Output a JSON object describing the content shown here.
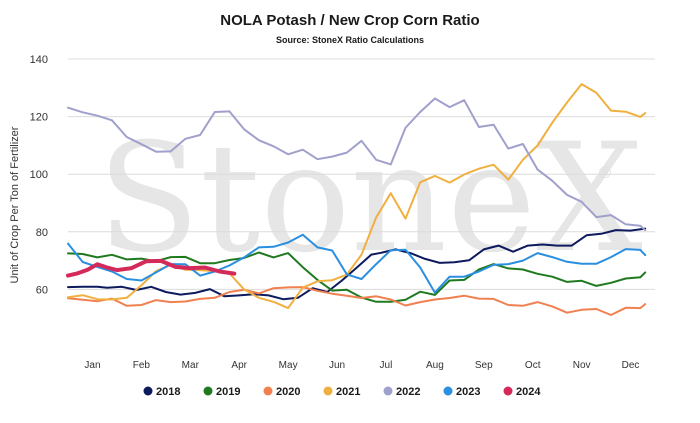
{
  "chart_data": {
    "type": "line",
    "title": "NOLA Potash / New Crop Corn Ratio",
    "subtitle": "Source: StoneX Ratio Calculations",
    "watermark": "StoneX",
    "watermark_mark": "®",
    "ylabel": "Unit of Crop Per Ton of Fertilizer",
    "xlabel": "",
    "ylim": [
      40,
      140
    ],
    "yticks": [
      60,
      80,
      100,
      120,
      140
    ],
    "xlim": [
      0.5,
      12.5
    ],
    "categories": [
      "Jan",
      "Feb",
      "Mar",
      "Apr",
      "May",
      "Jun",
      "Jul",
      "Aug",
      "Sep",
      "Oct",
      "Nov",
      "Dec"
    ],
    "grid": "horizontal",
    "legend_position": "bottom",
    "series": [
      {
        "name": "2018",
        "color": "#0d1a5e",
        "width": 2,
        "x": [
          0.5,
          0.8,
          1.1,
          1.3,
          1.6,
          1.9,
          2.2,
          2.5,
          2.8,
          3.1,
          3.4,
          3.7,
          4.0,
          4.3,
          4.6,
          4.9,
          5.2,
          5.5,
          5.8,
          6.1,
          6.4,
          6.7,
          6.9,
          7.2,
          7.5,
          7.8,
          8.1,
          8.4,
          8.7,
          9.0,
          9.3,
          9.6,
          9.9,
          10.2,
          10.5,
          10.8,
          11.1,
          11.4,
          11.7,
          12.0,
          12.3
        ],
        "y": [
          60.8,
          60.9,
          60.9,
          60.6,
          60.9,
          59.8,
          60.9,
          59.1,
          58.2,
          58.8,
          60.1,
          57.6,
          57.9,
          58.3,
          57.9,
          56.6,
          57.1,
          60.4,
          59.1,
          63.1,
          67.5,
          72.1,
          72.7,
          73.9,
          72.6,
          70.6,
          69.2,
          69.4,
          70.1,
          73.9,
          75.2,
          73.1,
          75.2,
          75.6,
          75.2,
          75.2,
          78.8,
          79.3,
          80.6,
          80.4,
          81.1
        ]
      },
      {
        "name": "2019",
        "color": "#1f7a1f",
        "width": 2,
        "x": [
          0.5,
          0.8,
          1.1,
          1.4,
          1.7,
          2.0,
          2.3,
          2.6,
          2.9,
          3.2,
          3.5,
          3.8,
          4.1,
          4.4,
          4.7,
          5.0,
          5.3,
          5.6,
          5.9,
          6.2,
          6.5,
          6.8,
          7.1,
          7.4,
          7.7,
          8.0,
          8.3,
          8.6,
          8.9,
          9.2,
          9.5,
          9.8,
          10.1,
          10.4,
          10.7,
          11.0,
          11.3,
          11.6,
          11.9,
          12.2,
          12.3
        ],
        "y": [
          72.5,
          72.3,
          71.1,
          72.0,
          70.4,
          70.7,
          69.8,
          71.2,
          71.3,
          69.1,
          69.1,
          70.2,
          70.9,
          72.8,
          71.1,
          72.6,
          67.7,
          63.3,
          59.6,
          59.9,
          57.2,
          55.7,
          55.7,
          56.4,
          59.2,
          58.1,
          63.1,
          63.3,
          66.9,
          68.8,
          67.3,
          66.9,
          65.4,
          64.4,
          62.6,
          63.0,
          61.2,
          62.3,
          63.8,
          64.2,
          65.9
        ]
      },
      {
        "name": "2020",
        "color": "#f08050",
        "width": 2,
        "x": [
          0.5,
          0.8,
          1.1,
          1.4,
          1.7,
          2.0,
          2.3,
          2.6,
          2.9,
          3.2,
          3.5,
          3.8,
          4.1,
          4.4,
          4.7,
          5.0,
          5.3,
          5.6,
          5.9,
          6.2,
          6.5,
          6.8,
          7.1,
          7.4,
          7.7,
          8.0,
          8.3,
          8.6,
          8.9,
          9.2,
          9.5,
          9.8,
          10.1,
          10.4,
          10.7,
          11.0,
          11.3,
          11.6,
          11.9,
          12.2,
          12.3
        ],
        "y": [
          56.9,
          56.4,
          55.9,
          56.8,
          54.3,
          54.6,
          56.3,
          55.6,
          55.8,
          56.7,
          57.1,
          59.1,
          59.9,
          58.6,
          60.4,
          60.7,
          60.8,
          59.5,
          58.5,
          57.8,
          57.0,
          57.6,
          56.5,
          54.4,
          55.6,
          56.5,
          57.0,
          57.8,
          56.8,
          56.7,
          54.6,
          54.3,
          55.6,
          54.1,
          51.9,
          52.9,
          53.2,
          51.1,
          53.6,
          53.5,
          54.9
        ]
      },
      {
        "name": "2021",
        "color": "#f0b040",
        "width": 2,
        "x": [
          0.5,
          0.8,
          1.1,
          1.4,
          1.7,
          2.0,
          2.3,
          2.6,
          2.9,
          3.2,
          3.5,
          3.8,
          4.1,
          4.4,
          4.7,
          5.0,
          5.3,
          5.6,
          5.9,
          6.2,
          6.5,
          6.8,
          7.1,
          7.4,
          7.7,
          8.0,
          8.3,
          8.6,
          8.9,
          9.2,
          9.5,
          9.8,
          10.1,
          10.4,
          10.7,
          11.0,
          11.3,
          11.6,
          11.9,
          12.2,
          12.3
        ],
        "y": [
          57.3,
          58.0,
          56.6,
          56.5,
          57.1,
          61.4,
          66.4,
          68.5,
          66.8,
          66.7,
          66.3,
          65.6,
          60.0,
          57.1,
          55.7,
          53.5,
          60.6,
          62.8,
          63.2,
          65.1,
          72.1,
          85.0,
          93.4,
          84.6,
          97.2,
          99.4,
          97.1,
          99.9,
          101.9,
          103.3,
          98.1,
          105.0,
          110.0,
          117.9,
          124.9,
          131.3,
          128.3,
          122.1,
          121.7,
          119.9,
          121.2
        ]
      },
      {
        "name": "2022",
        "color": "#a0a0cc",
        "width": 2,
        "x": [
          0.5,
          0.8,
          1.1,
          1.4,
          1.7,
          2.0,
          2.3,
          2.6,
          2.9,
          3.2,
          3.5,
          3.8,
          4.1,
          4.4,
          4.7,
          5.0,
          5.3,
          5.6,
          5.9,
          6.2,
          6.5,
          6.8,
          7.1,
          7.4,
          7.7,
          8.0,
          8.3,
          8.6,
          8.9,
          9.2,
          9.5,
          9.8,
          10.1,
          10.4,
          10.7,
          11.0,
          11.3,
          11.6,
          11.9,
          12.2,
          12.3
        ],
        "y": [
          123.1,
          121.5,
          120.3,
          118.7,
          112.9,
          110.4,
          107.8,
          107.9,
          112.3,
          113.6,
          121.6,
          121.8,
          115.6,
          111.8,
          109.7,
          106.9,
          108.5,
          105.2,
          106.1,
          107.5,
          111.6,
          105.0,
          103.4,
          116.1,
          121.6,
          126.3,
          123.3,
          125.7,
          116.4,
          117.2,
          108.9,
          110.5,
          101.6,
          97.7,
          92.8,
          90.4,
          85.1,
          85.8,
          82.6,
          82.1,
          80.6
        ]
      },
      {
        "name": "2023",
        "color": "#2b8fe0",
        "width": 2,
        "x": [
          0.5,
          0.8,
          1.1,
          1.4,
          1.7,
          2.0,
          2.3,
          2.6,
          2.9,
          3.2,
          3.5,
          3.8,
          4.1,
          4.4,
          4.7,
          5.0,
          5.3,
          5.6,
          5.9,
          6.2,
          6.5,
          6.8,
          7.1,
          7.4,
          7.7,
          8.0,
          8.3,
          8.6,
          8.9,
          9.2,
          9.5,
          9.8,
          10.1,
          10.4,
          10.7,
          11.0,
          11.3,
          11.6,
          11.9,
          12.2,
          12.3
        ],
        "y": [
          75.9,
          69.5,
          67.8,
          66.2,
          63.6,
          63.1,
          65.9,
          68.8,
          68.7,
          64.8,
          66.2,
          68.3,
          71.1,
          74.6,
          74.8,
          76.3,
          79.0,
          74.6,
          73.5,
          65.2,
          63.6,
          68.8,
          73.6,
          73.8,
          67.6,
          58.9,
          64.4,
          64.4,
          66.2,
          68.5,
          68.8,
          70.0,
          72.6,
          71.2,
          69.6,
          68.9,
          68.9,
          71.2,
          74.0,
          73.7,
          71.9
        ]
      },
      {
        "name": "2024",
        "color": "#d42a5a",
        "width": 4,
        "x": [
          0.5,
          0.7,
          0.9,
          1.1,
          1.3,
          1.5,
          1.8,
          2.1,
          2.4,
          2.7,
          3.0,
          3.3,
          3.6,
          3.9
        ],
        "y": [
          64.8,
          65.6,
          66.8,
          68.7,
          67.6,
          66.7,
          67.4,
          69.8,
          69.9,
          67.8,
          67.4,
          67.6,
          66.2,
          65.5
        ]
      }
    ]
  }
}
